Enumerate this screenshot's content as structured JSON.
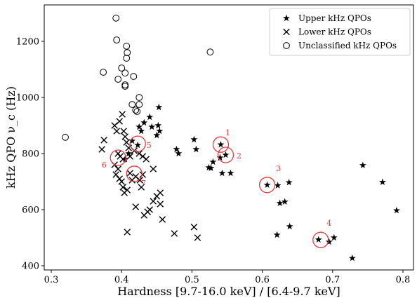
{
  "chart_data": {
    "type": "scatter",
    "title": "",
    "xlabel": "Hardness [9.7-16.0 keV] / [6.4-9.7 keV]",
    "ylabel": "kHz QPO ν_c  (Hz)",
    "xlim": [
      0.29,
      0.815
    ],
    "ylim": [
      385,
      1330
    ],
    "xticks": [
      0.3,
      0.4,
      0.5,
      0.6,
      0.7,
      0.8
    ],
    "yticks": [
      400,
      600,
      800,
      1000,
      1200
    ],
    "grid": false,
    "legend_position": "top-right",
    "colors": {
      "markers": "#000000",
      "annotation": "#e8383d"
    },
    "series": [
      {
        "name": "Upper kHz QPOs",
        "marker": "star",
        "points": [
          [
            0.453,
            965
          ],
          [
            0.44,
            930
          ],
          [
            0.452,
            900
          ],
          [
            0.454,
            880
          ],
          [
            0.432,
            910
          ],
          [
            0.443,
            895
          ],
          [
            0.45,
            865
          ],
          [
            0.425,
            895
          ],
          [
            0.428,
            880
          ],
          [
            0.415,
            845
          ],
          [
            0.423,
            830
          ],
          [
            0.41,
            800
          ],
          [
            0.405,
            780
          ],
          [
            0.478,
            815
          ],
          [
            0.481,
            800
          ],
          [
            0.503,
            850
          ],
          [
            0.506,
            815
          ],
          [
            0.524,
            750
          ],
          [
            0.527,
            748
          ],
          [
            0.53,
            770
          ],
          [
            0.54,
            785
          ],
          [
            0.543,
            730
          ],
          [
            0.555,
            730
          ],
          [
            0.541,
            832
          ],
          [
            0.548,
            795
          ],
          [
            0.607,
            688
          ],
          [
            0.622,
            686
          ],
          [
            0.625,
            623
          ],
          [
            0.632,
            628
          ],
          [
            0.638,
            697
          ],
          [
            0.621,
            510
          ],
          [
            0.639,
            540
          ],
          [
            0.68,
            493
          ],
          [
            0.695,
            485
          ],
          [
            0.702,
            500
          ],
          [
            0.728,
            427
          ],
          [
            0.743,
            758
          ],
          [
            0.771,
            698
          ],
          [
            0.791,
            597
          ]
        ]
      },
      {
        "name": "Lower kHz QPOs",
        "marker": "x",
        "points": [
          [
            0.372,
            815
          ],
          [
            0.375,
            848
          ],
          [
            0.39,
            900
          ],
          [
            0.393,
            880
          ],
          [
            0.397,
            915
          ],
          [
            0.401,
            940
          ],
          [
            0.403,
            880
          ],
          [
            0.405,
            860
          ],
          [
            0.407,
            840
          ],
          [
            0.41,
            820
          ],
          [
            0.395,
            800
          ],
          [
            0.398,
            790
          ],
          [
            0.402,
            780
          ],
          [
            0.39,
            760
          ],
          [
            0.395,
            745
          ],
          [
            0.392,
            725
          ],
          [
            0.397,
            710
          ],
          [
            0.4,
            700
          ],
          [
            0.402,
            680
          ],
          [
            0.404,
            660
          ],
          [
            0.408,
            670
          ],
          [
            0.415,
            705
          ],
          [
            0.42,
            718
          ],
          [
            0.426,
            705
          ],
          [
            0.43,
            725
          ],
          [
            0.445,
            745
          ],
          [
            0.412,
            730
          ],
          [
            0.428,
            680
          ],
          [
            0.42,
            610
          ],
          [
            0.432,
            580
          ],
          [
            0.437,
            592
          ],
          [
            0.44,
            600
          ],
          [
            0.445,
            630
          ],
          [
            0.45,
            648
          ],
          [
            0.455,
            660
          ],
          [
            0.455,
            620
          ],
          [
            0.458,
            565
          ],
          [
            0.408,
            520
          ],
          [
            0.475,
            515
          ],
          [
            0.503,
            538
          ],
          [
            0.508,
            500
          ],
          [
            0.425,
            800
          ],
          [
            0.43,
            790
          ],
          [
            0.435,
            780
          ],
          [
            0.418,
            810
          ],
          [
            0.412,
            790
          ]
        ]
      },
      {
        "name": "Unclassified kHz QPOs",
        "marker": "circle",
        "points": [
          [
            0.392,
            1283
          ],
          [
            0.393,
            1205
          ],
          [
            0.407,
            1183
          ],
          [
            0.408,
            1160
          ],
          [
            0.407,
            1140
          ],
          [
            0.374,
            1090
          ],
          [
            0.4,
            1105
          ],
          [
            0.405,
            1087
          ],
          [
            0.417,
            1075
          ],
          [
            0.395,
            1065
          ],
          [
            0.405,
            1045
          ],
          [
            0.405,
            1040
          ],
          [
            0.425,
            1000
          ],
          [
            0.425,
            975
          ],
          [
            0.415,
            975
          ],
          [
            0.42,
            955
          ],
          [
            0.422,
            950
          ],
          [
            0.526,
            1162
          ],
          [
            0.32,
            858
          ]
        ]
      }
    ],
    "annotations": [
      {
        "label": "1",
        "x": 0.541,
        "y": 832,
        "label_dx": 10,
        "label_dy": -13
      },
      {
        "label": "2",
        "x": 0.548,
        "y": 795,
        "label_dx": 19,
        "label_dy": 5
      },
      {
        "label": "3",
        "x": 0.607,
        "y": 688,
        "label_dx": 16,
        "label_dy": -20
      },
      {
        "label": "4",
        "x": 0.683,
        "y": 492,
        "label_dx": 12,
        "label_dy": -20
      },
      {
        "label": "5",
        "x": 0.423,
        "y": 835,
        "label_dx": 16,
        "label_dy": 6
      },
      {
        "label": "6",
        "x": 0.395,
        "y": 785,
        "label_dx": -20,
        "label_dy": 14
      },
      {
        "label": "7",
        "x": 0.418,
        "y": 728,
        "label_dx": 13,
        "label_dy": 17
      }
    ]
  }
}
